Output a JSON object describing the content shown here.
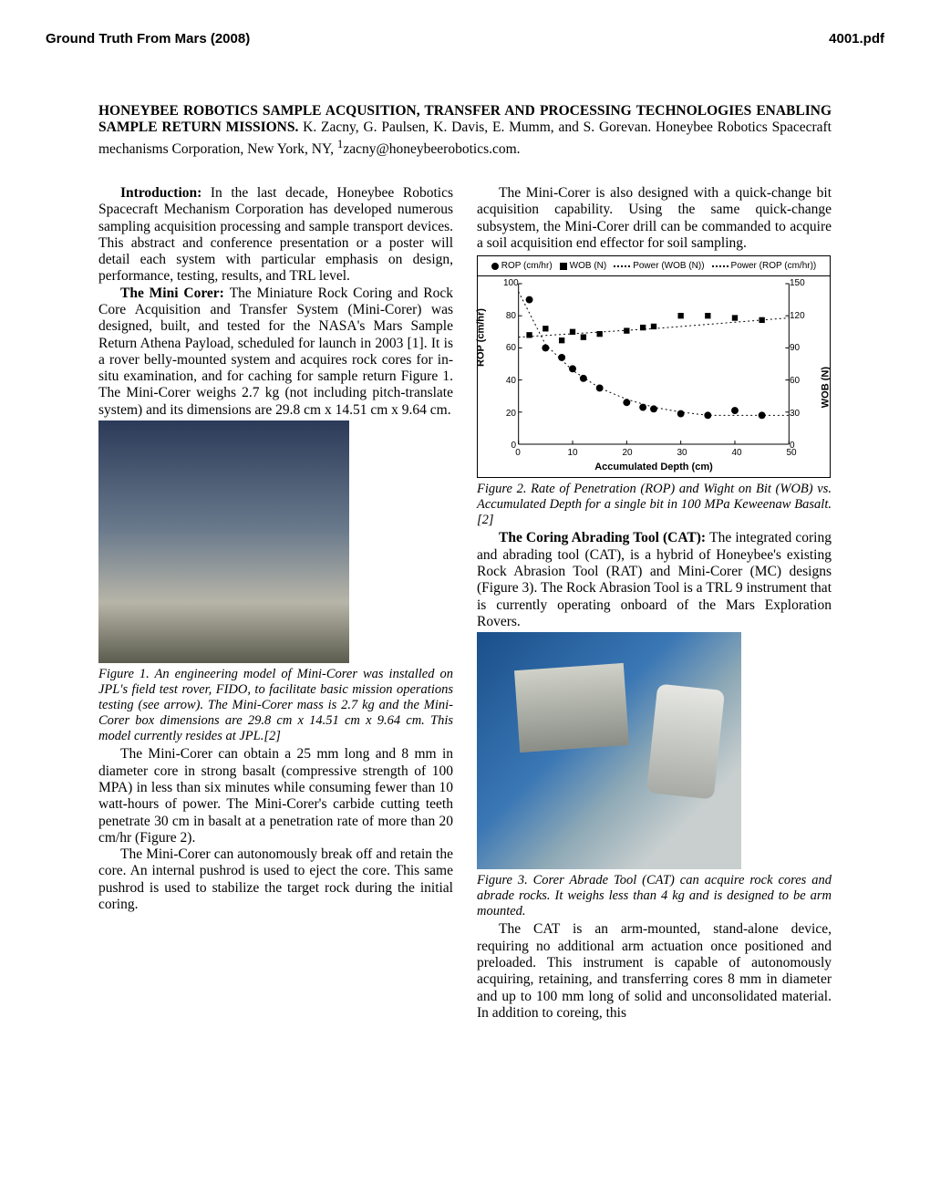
{
  "header": {
    "left": "Ground Truth From Mars (2008)",
    "right": "4001.pdf"
  },
  "title": {
    "bold": "HONEYBEE ROBOTICS SAMPLE ACQUSITION, TRANSFER AND PROCESSING TECHNOLOGIES ENABLING SAMPLE RETURN MISSIONS.",
    "rest": " K. Zacny, G. Paulsen, K. Davis, E. Mumm, and S. Gorevan. Honeybee Robotics Spacecraft mechanisms Corporation, New York, NY, ",
    "sup": "1",
    "after_sup": "zacny@honeybeerobotics.com."
  },
  "left_col": {
    "intro_head": "Introduction: ",
    "intro_body": "In the last decade, Honeybee Robotics Spacecraft Mechanism Corporation has developed numerous sampling acquisition processing and sample transport devices. This abstract and conference presentation or a poster will detail each system with particular emphasis on design, performance, testing, results, and TRL level.",
    "mc_head": "The Mini Corer: ",
    "mc_body": "The Miniature Rock Coring and Rock Core Acquisition and Transfer System (Mini-Corer) was designed, built, and tested for the NASA's Mars Sample Return Athena Payload, scheduled for launch in 2003 [1]. It is a rover belly-mounted system and acquires rock cores for in-situ examination, and for caching for sample return Figure 1. The Mini-Corer weighs 2.7 kg (not including pitch-translate system) and its dimensions are 29.8 cm x 14.51 cm x 9.64 cm.",
    "fig1_caption": "Figure 1. An engineering model of Mini-Corer was installed on JPL's field test rover, FIDO, to facilitate basic mission operations testing (see arrow). The Mini-Corer mass is 2.7 kg and the Mini-Corer box dimensions are 29.8 cm x 14.51 cm x 9.64 cm. This model currently resides at JPL.[2]",
    "p3": "The Mini-Corer can obtain a 25 mm long and 8 mm in diameter core in strong basalt (compressive strength of 100 MPA) in less than six minutes while consuming fewer than 10 watt-hours of power. The Mini-Corer's carbide cutting teeth penetrate 30 cm in basalt at a penetration rate of more than 20 cm/hr (Figure 2).",
    "p4": "The Mini-Corer can autonomously break off and retain the core. An internal pushrod is used to eject the core. This same pushrod is used to stabilize the target rock during the initial coring."
  },
  "right_col": {
    "p1": "The Mini-Corer is also designed with a quick-change bit acquisition capability. Using the same quick-change subsystem, the Mini-Corer drill can be commanded to acquire a soil acquisition end effector for soil sampling.",
    "fig2_caption": "Figure 2. Rate of Penetration (ROP) and Wight on Bit (WOB) vs. Accumulated Depth for a single bit in 100 MPa Keweenaw Basalt. [2]",
    "cat_head": "The Coring Abrading Tool (CAT): ",
    "cat_body": "The integrated coring and abrading tool (CAT), is a hybrid of Honeybee's existing Rock Abrasion Tool (RAT) and Mini-Corer (MC) designs (Figure 3). The Rock Abrasion Tool is a TRL 9 instrument that is currently operating onboard of the Mars Exploration Rovers.",
    "fig3_caption": "Figure 3. Corer Abrade Tool (CAT) can acquire rock cores and abrade rocks. It weighs less than 4 kg and is designed to be arm mounted.",
    "p_after_fig3": "The CAT is an arm-mounted, stand-alone device, requiring no additional arm actuation once positioned and preloaded. This instrument is capable of autonomously acquiring, retaining, and transferring cores 8 mm in diameter and up to 100 mm long of solid and unconsolidated material. In addition to coreing, this"
  },
  "fig2": {
    "type": "scatter-dual-axis",
    "legend": [
      "ROP (cm/hr)",
      "WOB (N)",
      "Power (WOB (N))",
      "Power (ROP (cm/hr))"
    ],
    "x_label": "Accumulated Depth (cm)",
    "y_left_label": "ROP (cm/hr)",
    "y_right_label": "WOB (N)",
    "x_ticks": [
      0,
      10,
      20,
      30,
      40,
      50
    ],
    "y_left_ticks": [
      0,
      20,
      40,
      60,
      80,
      100
    ],
    "y_right_ticks": [
      0,
      30,
      60,
      90,
      120,
      150
    ],
    "xlim": [
      0,
      50
    ],
    "y_left_lim": [
      0,
      100
    ],
    "y_right_lim": [
      0,
      150
    ],
    "rop_points": [
      [
        2,
        90
      ],
      [
        5,
        60
      ],
      [
        8,
        54
      ],
      [
        10,
        47
      ],
      [
        12,
        41
      ],
      [
        15,
        35
      ],
      [
        20,
        26
      ],
      [
        23,
        23
      ],
      [
        25,
        22
      ],
      [
        30,
        19
      ],
      [
        35,
        18
      ],
      [
        40,
        21
      ],
      [
        45,
        18
      ]
    ],
    "wob_points": [
      [
        2,
        102
      ],
      [
        5,
        108
      ],
      [
        8,
        97
      ],
      [
        10,
        105
      ],
      [
        12,
        100
      ],
      [
        15,
        103
      ],
      [
        20,
        106
      ],
      [
        23,
        109
      ],
      [
        25,
        110
      ],
      [
        30,
        120
      ],
      [
        35,
        120
      ],
      [
        40,
        118
      ],
      [
        45,
        116
      ]
    ],
    "power_wob_curve": [
      [
        0,
        100
      ],
      [
        25,
        108
      ],
      [
        50,
        118
      ]
    ],
    "power_rop_curve": [
      [
        0,
        95
      ],
      [
        5,
        62
      ],
      [
        10,
        46
      ],
      [
        15,
        35
      ],
      [
        20,
        28
      ],
      [
        25,
        23
      ],
      [
        30,
        20
      ],
      [
        35,
        18
      ],
      [
        40,
        18
      ],
      [
        45,
        18
      ],
      [
        50,
        18
      ]
    ],
    "colors": {
      "marker": "#000000",
      "dots": "#000000",
      "bg": "#ffffff",
      "axis": "#000000"
    },
    "marker_size": 4,
    "font_family": "Arial",
    "tick_fontsize": 10,
    "label_fontsize": 11
  }
}
